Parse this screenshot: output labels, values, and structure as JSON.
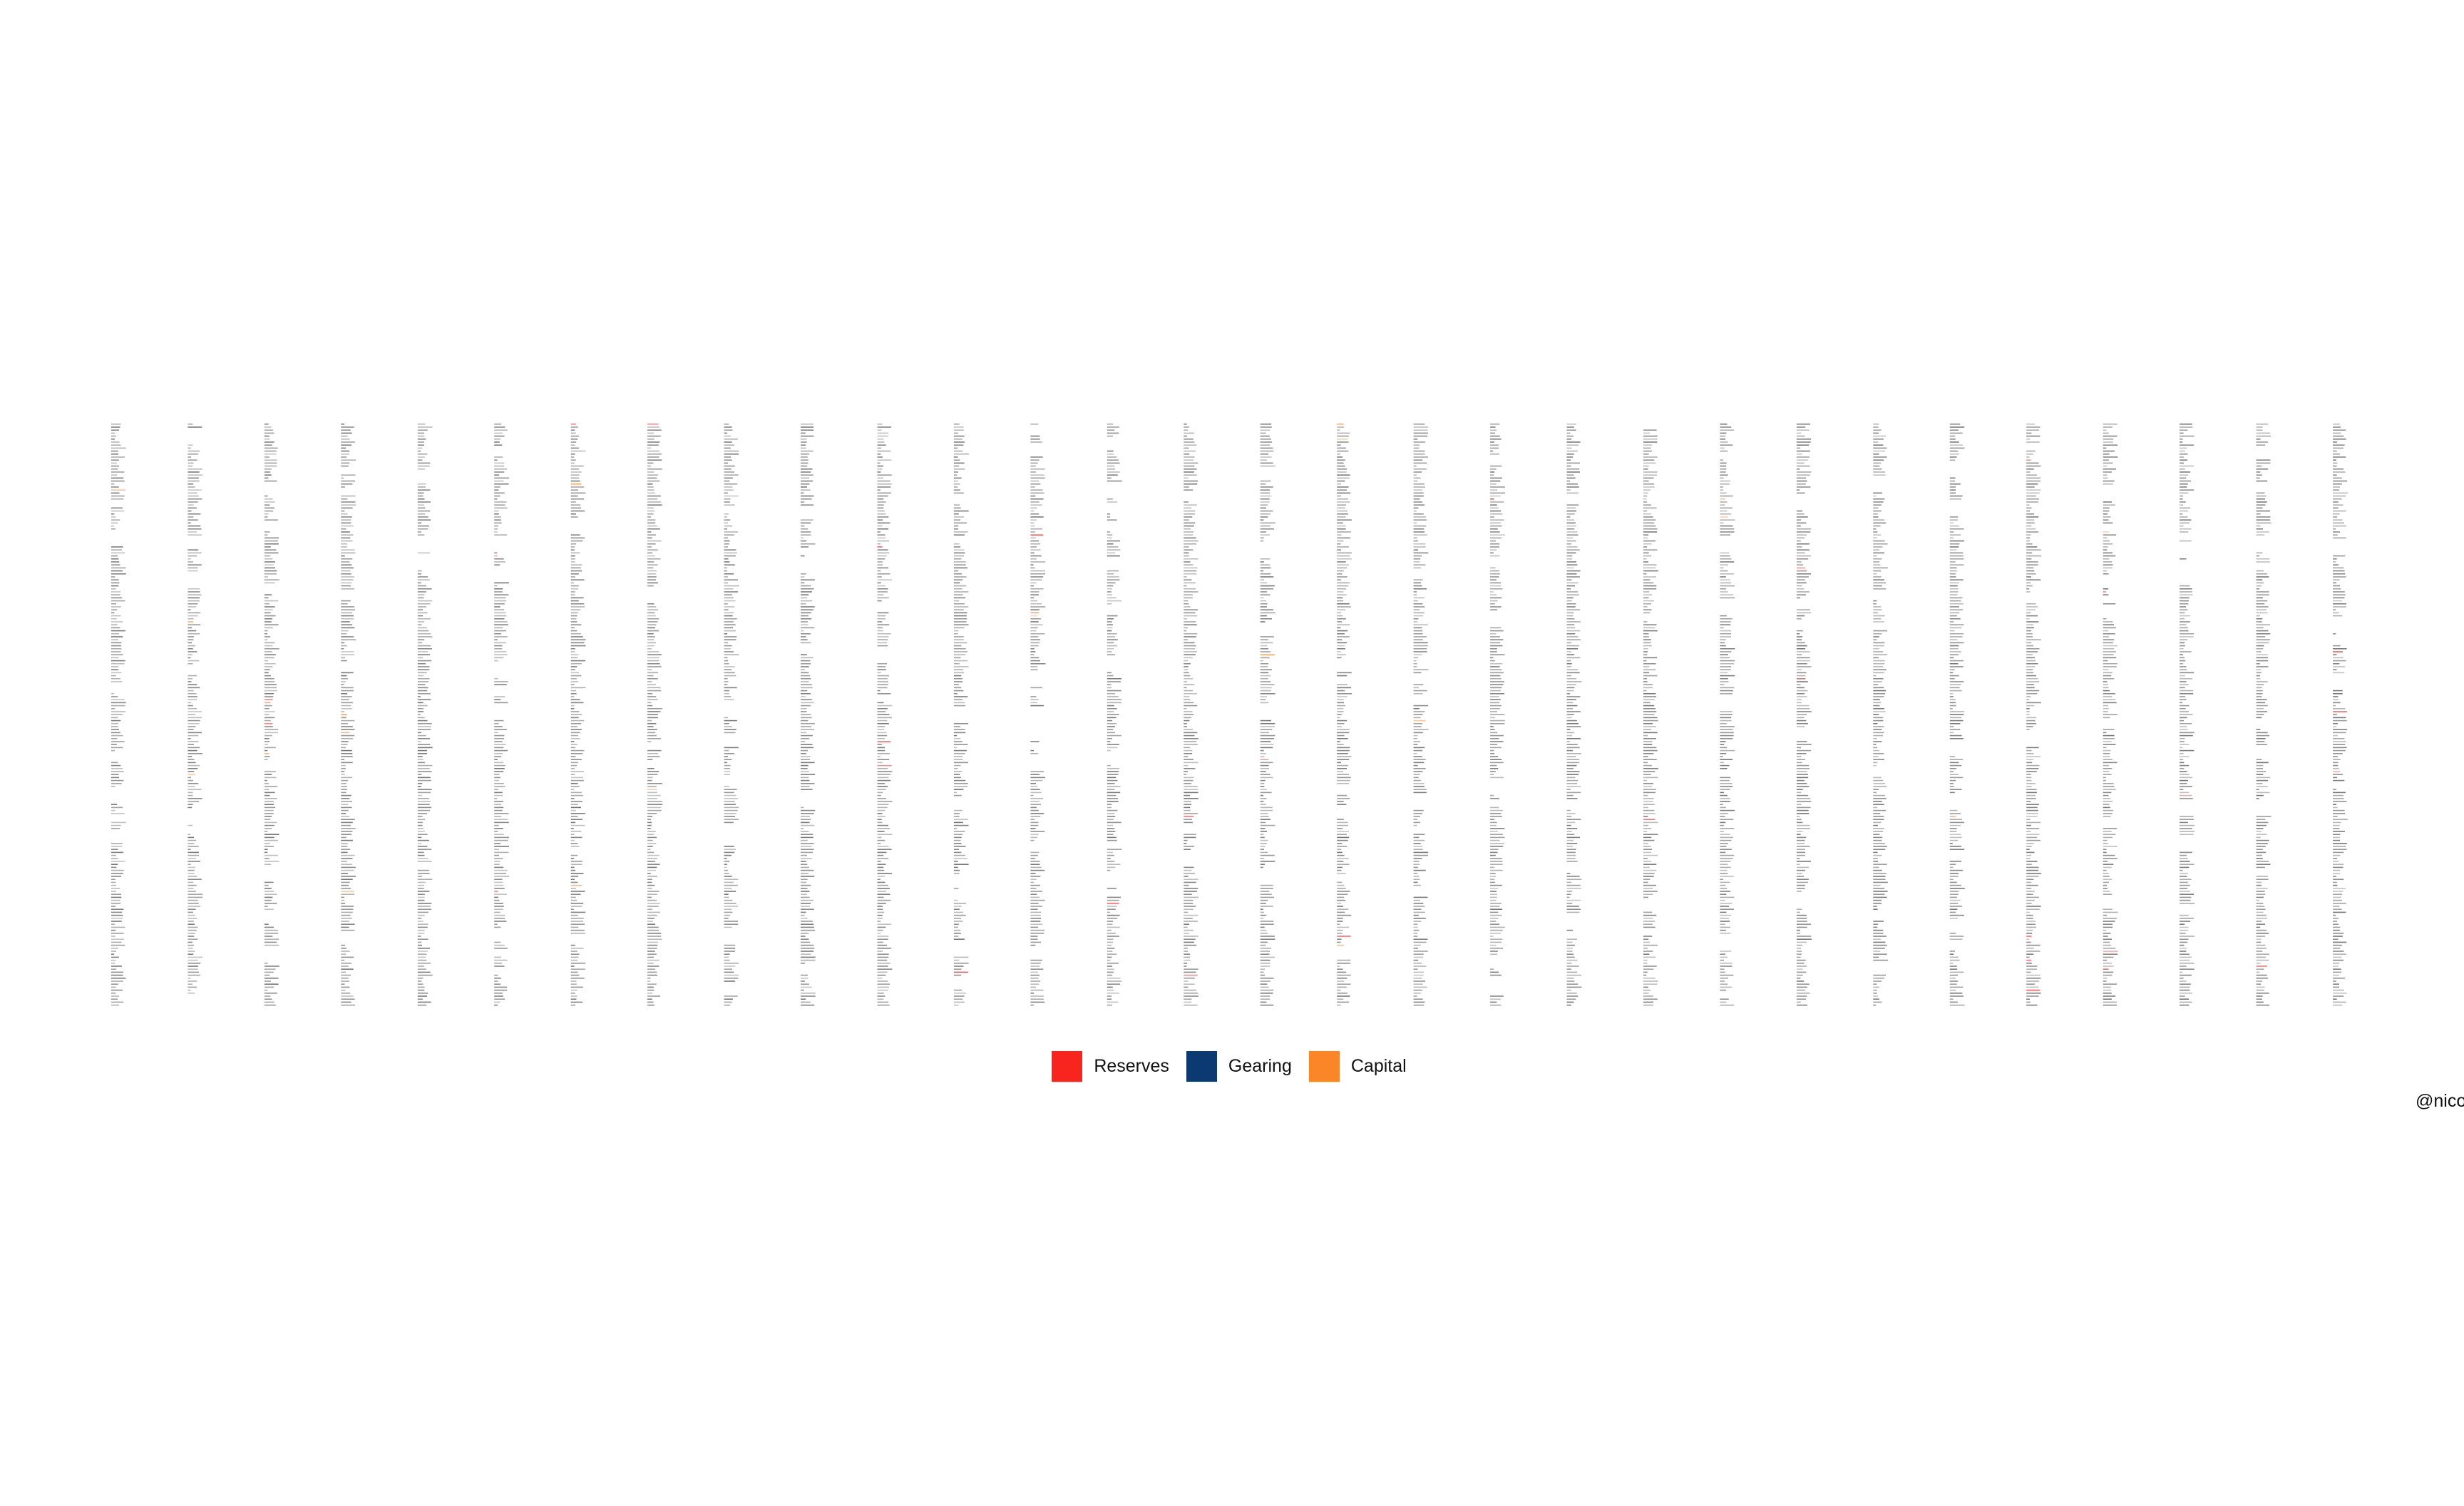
{
  "caption": "@nico",
  "chart_data": {
    "type": "table",
    "title": "",
    "column_count": 30,
    "legend_position": "bottom-center",
    "grid": false,
    "legend": [
      {
        "name": "Reserves",
        "color": "#f8241e"
      },
      {
        "name": "Gearing",
        "color": "#0b3a73"
      },
      {
        "name": "Capital",
        "color": "#fb8628"
      }
    ],
    "text_color": "#555555"
  }
}
